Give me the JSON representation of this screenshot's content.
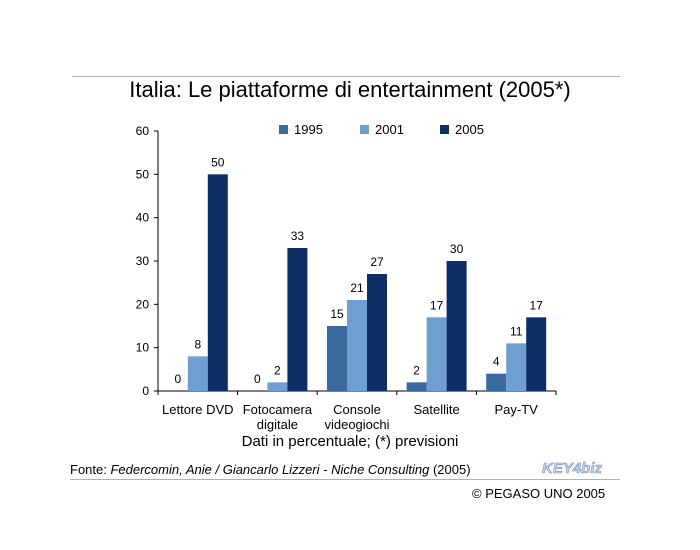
{
  "title": "Italia: Le piattaforme di entertainment (2005*)",
  "subtitle": "Dati in percentuale; (*) previsioni",
  "source": {
    "prefix": "Fonte: ",
    "citation": "Federcomin, Anie / Giancarlo Lizzeri - Niche Consulting",
    "suffix": " (2005)"
  },
  "logo": {
    "text": "KEY4biz"
  },
  "copyright": "© PEGASO UNO 2005",
  "colors": {
    "1995": "#3a6a9e",
    "2001": "#6f9fd1",
    "2005": "#0d2f66"
  },
  "chart_data": {
    "type": "bar",
    "categories": [
      [
        "Lettore DVD"
      ],
      [
        "Fotocamera",
        "digitale"
      ],
      [
        "Console",
        "videogiochi"
      ],
      [
        "Satellite"
      ],
      [
        "Pay-TV"
      ]
    ],
    "series": [
      {
        "name": "1995",
        "values": [
          0,
          0,
          15,
          2,
          4
        ]
      },
      {
        "name": "2001",
        "values": [
          8,
          2,
          21,
          17,
          11
        ]
      },
      {
        "name": "2005",
        "values": [
          50,
          33,
          27,
          30,
          17
        ]
      }
    ],
    "yticks": [
      0,
      10,
      20,
      30,
      40,
      50,
      60
    ],
    "ylim": [
      0,
      60
    ],
    "grid": false,
    "legend": "top"
  }
}
